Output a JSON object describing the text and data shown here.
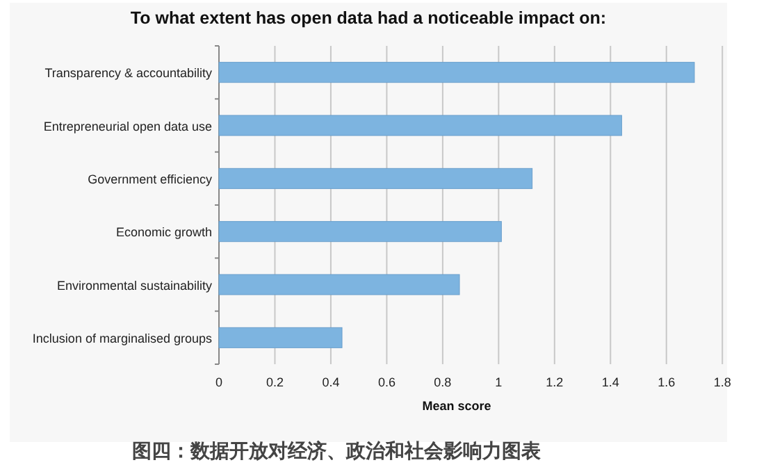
{
  "chart_data": {
    "type": "bar",
    "orientation": "horizontal",
    "title": "To what extent has open data had a noticeable impact on:",
    "categories": [
      "Transparency & accountability",
      "Entrepreneurial open data use",
      "Government efficiency",
      "Economic growth",
      "Environmental sustainability",
      "Inclusion of marginalised groups"
    ],
    "values": [
      1.7,
      1.44,
      1.12,
      1.01,
      0.86,
      0.44
    ],
    "color": "#7db4e0",
    "xlim": [
      0,
      1.8
    ],
    "xticks": [
      0,
      0.2,
      0.4,
      0.6,
      0.8,
      1,
      1.2,
      1.4,
      1.6,
      1.8
    ],
    "xlabel": "Mean score",
    "grid": "x",
    "annotations": [
      "图四：数据开放对经济、政治和社会影响力图表"
    ]
  }
}
